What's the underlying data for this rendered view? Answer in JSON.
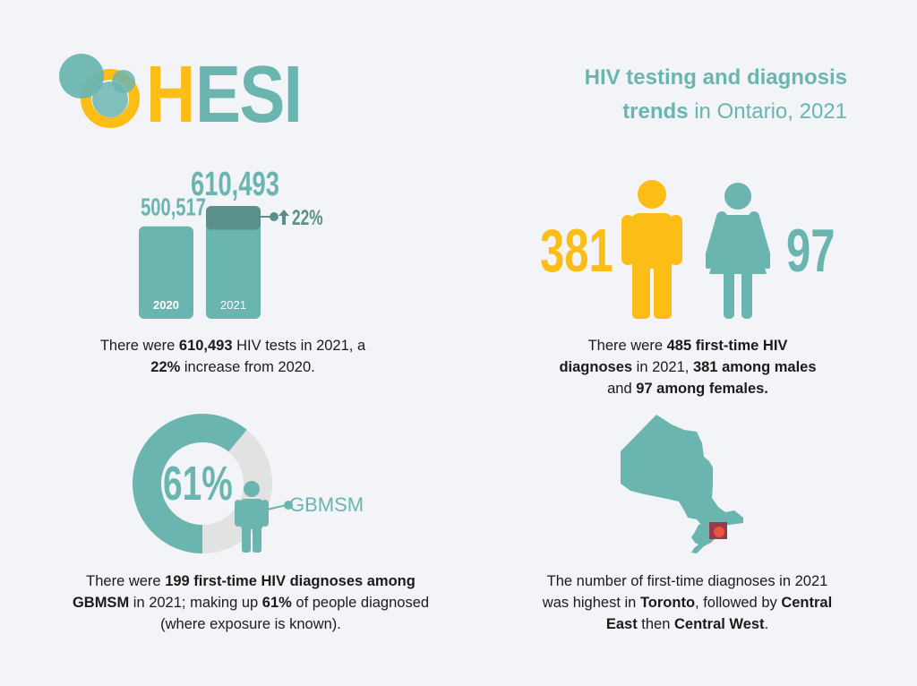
{
  "colors": {
    "teal": "#6bb5b0",
    "dark_teal": "#5a9089",
    "yellow": "#fbbd16",
    "grey": "#e2e2e2",
    "toronto": "#9b3a4f",
    "toronto_dot": "#e8563a",
    "background": "#f3f4f8"
  },
  "logo": {
    "text": "OHESI",
    "letters_yellow": "H",
    "letters_teal": "ESI"
  },
  "title": {
    "line1": "HIV testing and diagnosis",
    "line2_bold": "trends",
    "line2_rest": " in Ontario, 2021"
  },
  "tests": {
    "chart_data": {
      "type": "bar",
      "categories": [
        "2020",
        "2021"
      ],
      "values": [
        500517,
        610493
      ],
      "value_labels": [
        "500,517",
        "610,493"
      ],
      "increase_label": "22%",
      "increase_icon": "arrow-up-icon"
    },
    "caption": [
      {
        "t": "There were ",
        "b": false
      },
      {
        "t": "610,493",
        "b": true
      },
      {
        "t": " HIV tests in 2021, a ",
        "b": false
      },
      {
        "t": "22%",
        "b": true
      },
      {
        "t": " increase from 2020.",
        "b": false
      }
    ]
  },
  "sex": {
    "male_value": "381",
    "female_value": "97",
    "male_icon": "male-person-icon",
    "female_icon": "female-person-icon",
    "caption": [
      {
        "t": "There were ",
        "b": false
      },
      {
        "t": "485 first-time HIV diagnoses",
        "b": true
      },
      {
        "t": " in 2021, ",
        "b": false
      },
      {
        "t": "381 among males",
        "b": true
      },
      {
        "t": " and ",
        "b": false
      },
      {
        "t": "97 among females.",
        "b": true
      }
    ]
  },
  "gbmsm": {
    "chart_data": {
      "type": "pie",
      "values": [
        61,
        39
      ],
      "center_label": "61%"
    },
    "label": "GBMSM",
    "caption": [
      {
        "t": "There were ",
        "b": false
      },
      {
        "t": "199 first-time HIV diagnoses among GBMSM",
        "b": true
      },
      {
        "t": " in 2021; making up ",
        "b": false
      },
      {
        "t": "61%",
        "b": true
      },
      {
        "t": " of people diagnosed (where exposure is known).",
        "b": false
      }
    ]
  },
  "region": {
    "map_icon": "ontario-map-icon",
    "caption": [
      {
        "t": "The number of first-time diagnoses in 2021 was highest in ",
        "b": false
      },
      {
        "t": "Toronto",
        "b": true
      },
      {
        "t": ", followed by ",
        "b": false
      },
      {
        "t": "Central East",
        "b": true
      },
      {
        "t": " then ",
        "b": false
      },
      {
        "t": "Central West",
        "b": true
      },
      {
        "t": ".",
        "b": false
      }
    ]
  }
}
